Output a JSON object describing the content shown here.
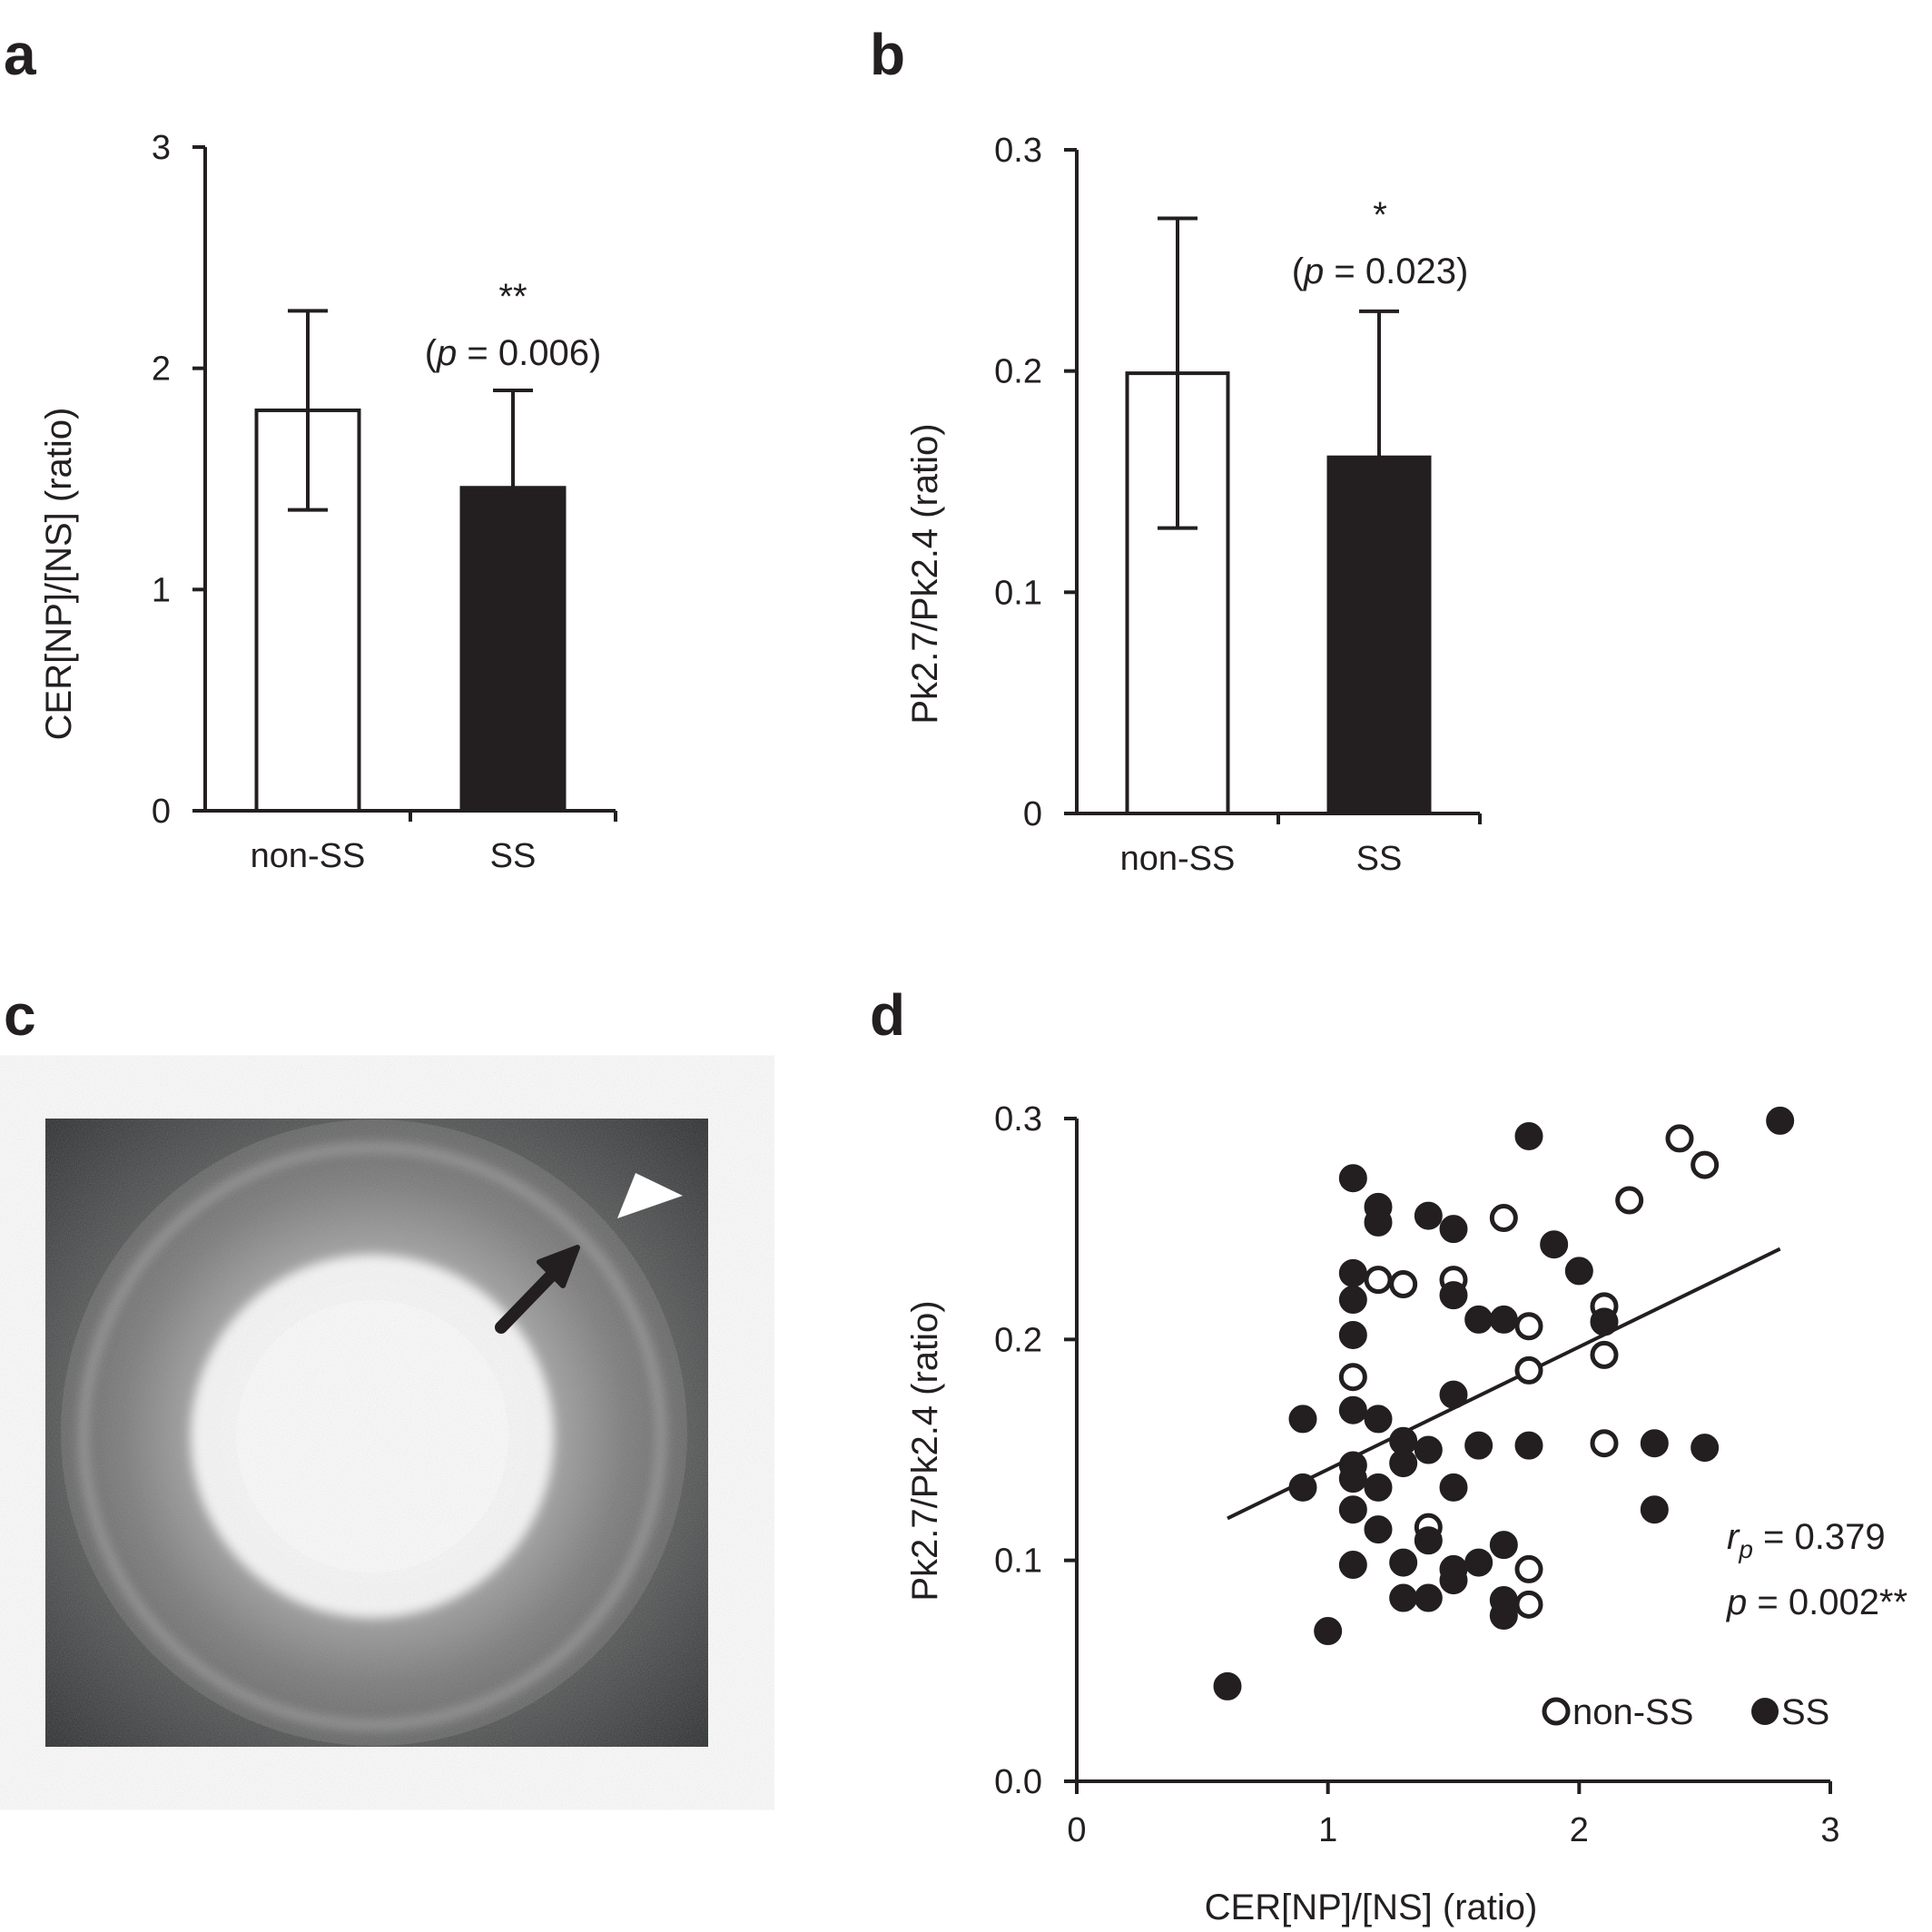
{
  "panels": {
    "a": {
      "label": "a"
    },
    "b": {
      "label": "b"
    },
    "c": {
      "label": "c"
    },
    "d": {
      "label": "d"
    }
  },
  "colors": {
    "ink": "#231f20",
    "open_fill": "#ffffff",
    "closed_fill": "#231f20"
  },
  "chart_data": [
    {
      "panel": "a",
      "type": "bar",
      "ylabel": "CER[NP]/[NS] (ratio)",
      "ylim": [
        0,
        3
      ],
      "yticks": [
        "0",
        "1",
        "2",
        "3"
      ],
      "yticks_values": [
        0,
        1,
        2,
        3
      ],
      "categories": [
        "non-SS",
        "SS"
      ],
      "values": [
        1.81,
        1.46
      ],
      "errors": [
        0.45,
        0.44
      ],
      "bar_fills": [
        "open",
        "closed"
      ],
      "annotation": {
        "stars": "**",
        "p_prefix": "(",
        "p_italic": "p",
        "p_rest": " = 0.006)"
      },
      "grid": false
    },
    {
      "panel": "b",
      "type": "bar",
      "ylabel": "Pk2.7/Pk2.4 (ratio)",
      "ylim": [
        0,
        0.3
      ],
      "yticks": [
        "0",
        "0.1",
        "0.2",
        "0.3"
      ],
      "yticks_values": [
        0,
        0.1,
        0.2,
        0.3
      ],
      "categories": [
        "non-SS",
        "SS"
      ],
      "values": [
        0.199,
        0.161
      ],
      "errors": [
        0.07,
        0.066
      ],
      "bar_fills": [
        "open",
        "closed"
      ],
      "annotation": {
        "stars": "*",
        "p_prefix": "(",
        "p_italic": "p",
        "p_rest": " = 0.023)"
      },
      "grid": false
    },
    {
      "panel": "d",
      "type": "scatter",
      "xlabel": "CER[NP]/[NS] (ratio)",
      "ylabel": "Pk2.7/Pk2.4 (ratio)",
      "xlim": [
        0,
        3
      ],
      "ylim": [
        0,
        0.3
      ],
      "xticks": [
        "0",
        "1",
        "2",
        "3"
      ],
      "xticks_values": [
        0,
        1,
        2,
        3
      ],
      "yticks": [
        "0.0",
        "0.1",
        "0.2",
        "0.3"
      ],
      "yticks_values": [
        0,
        0.1,
        0.2,
        0.3
      ],
      "grid": false,
      "legend_position": "bottom-right",
      "series": [
        {
          "name": "non-SS",
          "marker": "open-circle",
          "points": [
            [
              2.4,
              0.291
            ],
            [
              2.5,
              0.279
            ],
            [
              2.2,
              0.263
            ],
            [
              1.7,
              0.255
            ],
            [
              1.2,
              0.227
            ],
            [
              1.3,
              0.225
            ],
            [
              1.5,
              0.227
            ],
            [
              2.1,
              0.215
            ],
            [
              1.8,
              0.206
            ],
            [
              2.1,
              0.193
            ],
            [
              1.8,
              0.186
            ],
            [
              1.1,
              0.183
            ],
            [
              2.1,
              0.153
            ],
            [
              1.4,
              0.115
            ],
            [
              1.8,
              0.096
            ],
            [
              1.8,
              0.08
            ]
          ]
        },
        {
          "name": "SS",
          "marker": "filled-circle",
          "points": [
            [
              2.8,
              0.299
            ],
            [
              1.8,
              0.292
            ],
            [
              1.1,
              0.273
            ],
            [
              1.2,
              0.26
            ],
            [
              1.2,
              0.253
            ],
            [
              1.4,
              0.256
            ],
            [
              1.5,
              0.25
            ],
            [
              1.9,
              0.243
            ],
            [
              2.0,
              0.231
            ],
            [
              1.1,
              0.23
            ],
            [
              1.1,
              0.218
            ],
            [
              1.5,
              0.22
            ],
            [
              1.6,
              0.209
            ],
            [
              1.7,
              0.209
            ],
            [
              2.1,
              0.208
            ],
            [
              1.1,
              0.202
            ],
            [
              1.5,
              0.175
            ],
            [
              1.1,
              0.168
            ],
            [
              1.2,
              0.164
            ],
            [
              0.9,
              0.164
            ],
            [
              1.3,
              0.154
            ],
            [
              1.4,
              0.15
            ],
            [
              1.6,
              0.152
            ],
            [
              1.8,
              0.152
            ],
            [
              2.3,
              0.153
            ],
            [
              2.5,
              0.151
            ],
            [
              1.1,
              0.143
            ],
            [
              1.3,
              0.144
            ],
            [
              1.1,
              0.137
            ],
            [
              0.9,
              0.133
            ],
            [
              1.2,
              0.133
            ],
            [
              1.5,
              0.133
            ],
            [
              1.1,
              0.123
            ],
            [
              2.3,
              0.123
            ],
            [
              1.2,
              0.114
            ],
            [
              1.4,
              0.109
            ],
            [
              1.7,
              0.107
            ],
            [
              1.1,
              0.098
            ],
            [
              1.3,
              0.099
            ],
            [
              1.5,
              0.096
            ],
            [
              1.6,
              0.099
            ],
            [
              1.5,
              0.091
            ],
            [
              1.3,
              0.083
            ],
            [
              1.4,
              0.083
            ],
            [
              1.7,
              0.082
            ],
            [
              1.7,
              0.075
            ],
            [
              1.0,
              0.068
            ],
            [
              0.6,
              0.043
            ]
          ]
        }
      ],
      "regression_line": {
        "x": [
          0.6,
          2.8
        ],
        "y": [
          0.119,
          0.241
        ]
      },
      "stats": {
        "r_main": "r",
        "r_sub": "p",
        "r_rest": " = 0.379",
        "p_italic": "p",
        "p_rest": " = 0.002**"
      }
    }
  ]
}
